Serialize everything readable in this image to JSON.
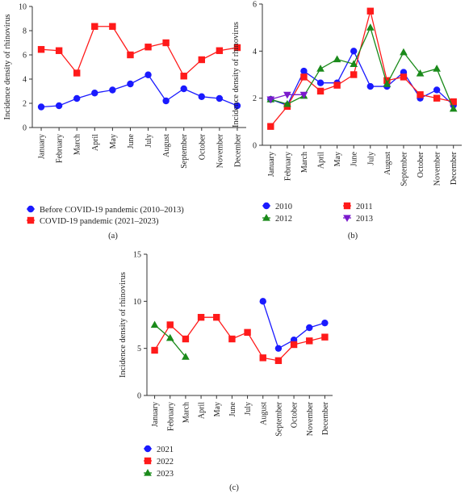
{
  "chart_data": [
    {
      "type": "line",
      "panel_label": "(a)",
      "ylabel": "Incidence density of rhinovirus",
      "xlabel": "",
      "ylim": [
        0,
        10
      ],
      "yticks": [
        0,
        2,
        4,
        6,
        8,
        10
      ],
      "categories": [
        "January",
        "February",
        "March",
        "April",
        "May",
        "June",
        "July",
        "August",
        "September",
        "October",
        "November",
        "December"
      ],
      "legend_position": "bottom-left",
      "series": [
        {
          "name": "Before COVID-19 pandemic (2010–2013)",
          "color": "#1a1aff",
          "marker": "circle",
          "values": [
            1.7,
            1.8,
            2.4,
            2.85,
            3.1,
            3.6,
            4.35,
            2.2,
            3.2,
            2.55,
            2.4,
            1.8
          ]
        },
        {
          "name": "COVID-19 pandemic (2021–2023)",
          "color": "#ff1a1a",
          "marker": "square",
          "values": [
            6.45,
            6.35,
            4.5,
            8.35,
            8.35,
            6.0,
            6.65,
            7.0,
            4.25,
            5.6,
            6.35,
            6.6
          ]
        }
      ]
    },
    {
      "type": "line",
      "panel_label": "(b)",
      "ylabel": "Incidence density of rhinovirus",
      "xlabel": "",
      "ylim": [
        0,
        6
      ],
      "yticks": [
        0,
        2,
        4,
        6
      ],
      "categories": [
        "January",
        "February",
        "March",
        "April",
        "May",
        "June",
        "July",
        "August",
        "September",
        "October",
        "November",
        "December"
      ],
      "legend_position": "bottom",
      "series": [
        {
          "name": "2010",
          "color": "#1a1aff",
          "marker": "circle",
          "values": [
            1.95,
            1.7,
            3.15,
            2.65,
            2.65,
            4.0,
            2.5,
            2.5,
            3.1,
            2.0,
            2.35,
            1.7
          ]
        },
        {
          "name": "2011",
          "color": "#ff1a1a",
          "marker": "square",
          "values": [
            0.8,
            1.65,
            2.9,
            2.3,
            2.55,
            3.0,
            5.7,
            2.75,
            2.9,
            2.15,
            2.0,
            1.85
          ]
        },
        {
          "name": "2012",
          "color": "#1a8a1a",
          "marker": "triangle-up",
          "values": [
            1.95,
            1.75,
            2.1,
            3.25,
            3.65,
            3.45,
            5.0,
            2.6,
            3.95,
            3.05,
            3.25,
            1.55
          ]
        },
        {
          "name": "2013",
          "color": "#7a1acc",
          "marker": "triangle-down",
          "values": [
            1.95,
            2.15,
            2.15,
            null,
            null,
            null,
            null,
            null,
            null,
            null,
            null,
            null
          ]
        }
      ]
    },
    {
      "type": "line",
      "panel_label": "(c)",
      "ylabel": "Incidence density of rhinovirus",
      "xlabel": "",
      "ylim": [
        0,
        15
      ],
      "yticks": [
        0,
        5,
        10,
        15
      ],
      "categories": [
        "January",
        "February",
        "March",
        "April",
        "May",
        "June",
        "July",
        "August",
        "September",
        "October",
        "November",
        "December"
      ],
      "legend_position": "bottom-left",
      "series": [
        {
          "name": "2021",
          "color": "#1a1aff",
          "marker": "circle",
          "values": [
            null,
            null,
            null,
            null,
            null,
            null,
            null,
            10.0,
            5.0,
            5.9,
            7.2,
            7.7
          ]
        },
        {
          "name": "2022",
          "color": "#ff1a1a",
          "marker": "square",
          "values": [
            4.8,
            7.5,
            6.0,
            8.3,
            8.3,
            6.0,
            6.7,
            4.0,
            3.7,
            5.4,
            5.8,
            6.2
          ]
        },
        {
          "name": "2023",
          "color": "#1a8a1a",
          "marker": "triangle-up",
          "values": [
            7.5,
            6.1,
            4.1,
            null,
            null,
            null,
            null,
            null,
            null,
            null,
            null,
            null
          ]
        }
      ]
    }
  ]
}
